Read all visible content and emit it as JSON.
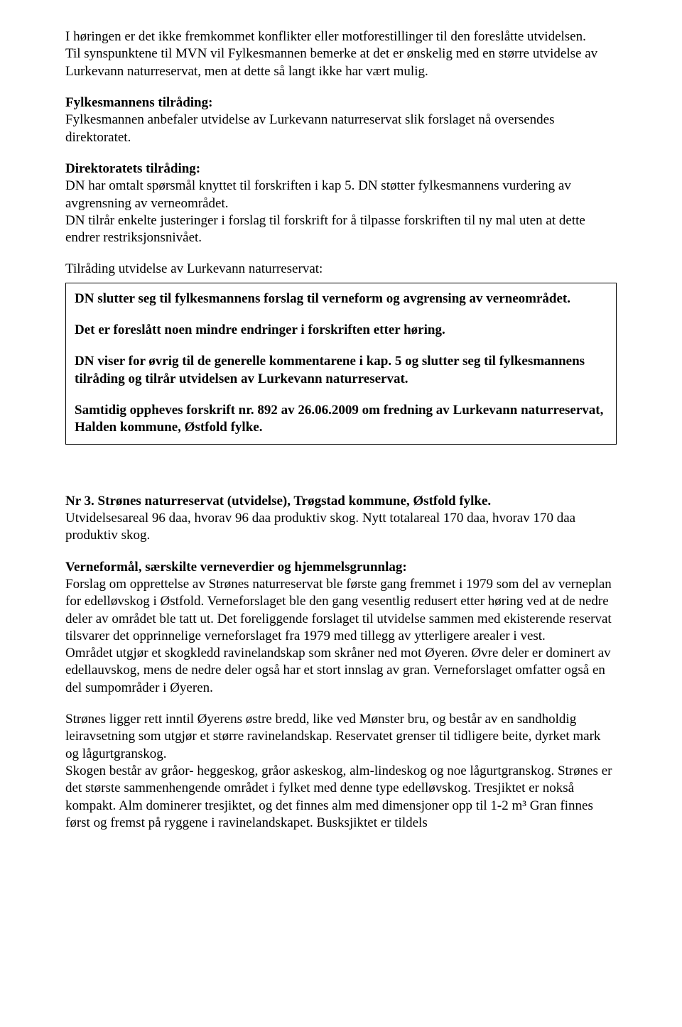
{
  "p1": "I høringen er det ikke fremkommet konflikter eller motforestillinger til den foreslåtte utvidelsen.",
  "p2": "Til synspunktene til MVN vil Fylkesmannen bemerke at det er ønskelig med en større utvidelse av Lurkevann naturreservat, men at dette så langt ikke har vært mulig.",
  "h1": "Fylkesmannens tilråding:",
  "p3": "Fylkesmannen anbefaler utvidelse av Lurkevann naturreservat slik forslaget nå oversendes direktoratet.",
  "h2": "Direktoratets tilråding:",
  "p4": "DN har omtalt spørsmål knyttet til forskriften i kap 5. DN støtter fylkesmannens vurdering av avgrensning av verneområdet.",
  "p5": "DN tilrår enkelte justeringer i forslag til forskrift for å tilpasse forskriften til ny mal uten at dette endrer restriksjonsnivået.",
  "p6": "Tilråding utvidelse av Lurkevann naturreservat:",
  "box": {
    "b1": "DN slutter seg til fylkesmannens forslag til verneform og avgrensing av verneområdet.",
    "b2": "Det er foreslått noen mindre endringer i forskriften etter høring.",
    "b3": "DN viser for øvrig til de generelle kommentarene i kap. 5 og slutter seg til fylkesmannens tilråding og tilrår utvidelsen av Lurkevann naturreservat.",
    "b4": "Samtidig oppheves forskrift nr. 892 av 26.06.2009 om fredning av Lurkevann naturreservat, Halden kommune, Østfold fylke."
  },
  "h3": "Nr 3. Strønes naturreservat (utvidelse), Trøgstad kommune, Østfold fylke.",
  "p7": "Utvidelsesareal 96 daa, hvorav 96 daa produktiv skog. Nytt totalareal 170 daa, hvorav 170 daa produktiv skog.",
  "h4": "Verneformål, særskilte verneverdier og hjemmelsgrunnlag:",
  "p8": "Forslag om opprettelse av Strønes naturreservat ble første gang fremmet i 1979 som del av verneplan for edelløvskog i Østfold. Verneforslaget ble den gang vesentlig redusert etter høring ved at de nedre deler av området ble tatt ut. Det foreliggende forslaget til utvidelse sammen med ekisterende reservat tilsvarer det opprinnelige verneforslaget fra 1979 med tillegg av ytterligere arealer i vest.",
  "p9": "Området utgjør et skogkledd ravinelandskap som skråner ned mot Øyeren. Øvre deler er dominert av edellauvskog, mens de nedre deler også har et stort innslag av gran. Verneforslaget omfatter også en del sumpområder i Øyeren.",
  "p10": "Strønes ligger rett inntil Øyerens østre bredd, like ved Mønster bru, og består av en sandholdig leiravsetning som utgjør et større ravinelandskap. Reservatet grenser til tidligere beite, dyrket mark og lågurtgranskog.",
  "p11": "Skogen består av gråor- heggeskog, gråor askeskog, alm-lindeskog og noe lågurtgranskog. Strønes er det største sammenhengende området i fylket med denne type edelløvskog. Tresjiktet er nokså kompakt. Alm dominerer tresjiktet, og det finnes alm med dimensjoner opp til 1-2 m³ Gran finnes først og fremst på ryggene i ravinelandskapet. Busksjiktet er tildels"
}
